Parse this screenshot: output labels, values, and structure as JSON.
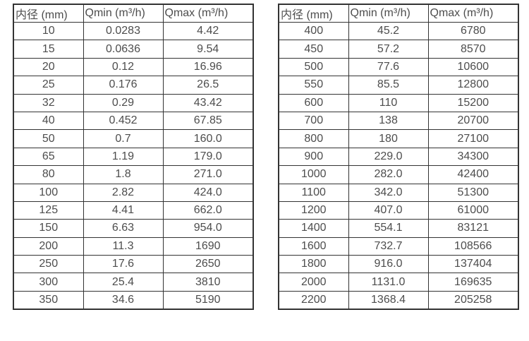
{
  "colors": {
    "border": "#333333",
    "text": "#4d4d4d",
    "background": "#ffffff"
  },
  "tables": [
    {
      "name": "flow-table-small-diameter",
      "columns": [
        "内径 (mm)",
        "Qmin (m³/h)",
        "Qmax (m³/h)"
      ],
      "rows": [
        [
          "10",
          "0.0283",
          "4.42"
        ],
        [
          "15",
          "0.0636",
          "9.54"
        ],
        [
          "20",
          "0.12",
          "16.96"
        ],
        [
          "25",
          "0.176",
          "26.5"
        ],
        [
          "32",
          "0.29",
          "43.42"
        ],
        [
          "40",
          "0.452",
          "67.85"
        ],
        [
          "50",
          "0.7",
          "160.0"
        ],
        [
          "65",
          "1.19",
          "179.0"
        ],
        [
          "80",
          "1.8",
          "271.0"
        ],
        [
          "100",
          "2.82",
          "424.0"
        ],
        [
          "125",
          "4.41",
          "662.0"
        ],
        [
          "150",
          "6.63",
          "954.0"
        ],
        [
          "200",
          "11.3",
          "1690"
        ],
        [
          "250",
          "17.6",
          "2650"
        ],
        [
          "300",
          "25.4",
          "3810"
        ],
        [
          "350",
          "34.6",
          "5190"
        ]
      ]
    },
    {
      "name": "flow-table-large-diameter",
      "columns": [
        "内径 (mm)",
        "Qmin (m³/h)",
        "Qmax (m³/h)"
      ],
      "rows": [
        [
          "400",
          "45.2",
          "6780"
        ],
        [
          "450",
          "57.2",
          "8570"
        ],
        [
          "500",
          "77.6",
          "10600"
        ],
        [
          "550",
          "85.5",
          "12800"
        ],
        [
          "600",
          "110",
          "15200"
        ],
        [
          "700",
          "138",
          "20700"
        ],
        [
          "800",
          "180",
          "27100"
        ],
        [
          "900",
          "229.0",
          "34300"
        ],
        [
          "1000",
          "282.0",
          "42400"
        ],
        [
          "1100",
          "342.0",
          "51300"
        ],
        [
          "1200",
          "407.0",
          "61000"
        ],
        [
          "1400",
          "554.1",
          "83121"
        ],
        [
          "1600",
          "732.7",
          "108566"
        ],
        [
          "1800",
          "916.0",
          "137404"
        ],
        [
          "2000",
          "1131.0",
          "169635"
        ],
        [
          "2200",
          "1368.4",
          "205258"
        ]
      ]
    }
  ]
}
